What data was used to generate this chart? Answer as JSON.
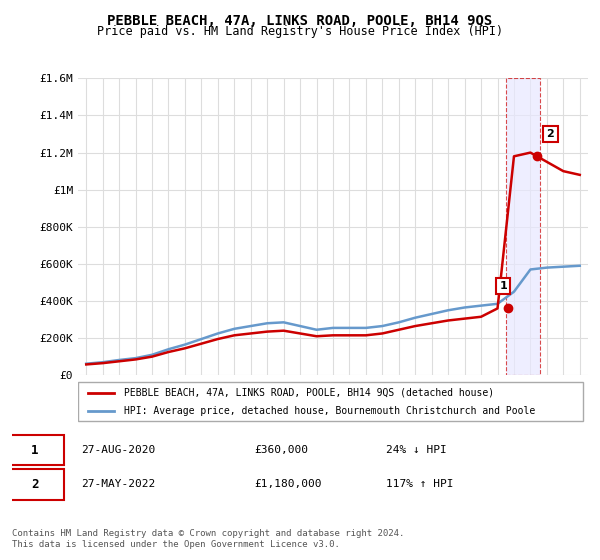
{
  "title": "PEBBLE BEACH, 47A, LINKS ROAD, POOLE, BH14 9QS",
  "subtitle": "Price paid vs. HM Land Registry's House Price Index (HPI)",
  "xlabel": "",
  "ylabel": "",
  "ylim": [
    0,
    1600000
  ],
  "xlim_start": 1995,
  "xlim_end": 2025.5,
  "yticks": [
    0,
    200000,
    400000,
    600000,
    800000,
    1000000,
    1200000,
    1400000,
    1600000
  ],
  "ytick_labels": [
    "£0",
    "£200K",
    "£400K",
    "£600K",
    "£800K",
    "£1M",
    "£1.2M",
    "£1.4M",
    "£1.6M"
  ],
  "xticks": [
    1995,
    1996,
    1997,
    1998,
    1999,
    2000,
    2001,
    2002,
    2003,
    2004,
    2005,
    2006,
    2007,
    2008,
    2009,
    2010,
    2011,
    2012,
    2013,
    2014,
    2015,
    2016,
    2017,
    2018,
    2019,
    2020,
    2021,
    2022,
    2023,
    2024,
    2025
  ],
  "hpi_x": [
    1995,
    1996,
    1997,
    1998,
    1999,
    2000,
    2001,
    2002,
    2003,
    2004,
    2005,
    2006,
    2007,
    2008,
    2009,
    2010,
    2011,
    2012,
    2013,
    2014,
    2015,
    2016,
    2017,
    2018,
    2019,
    2020,
    2021,
    2022,
    2023,
    2024,
    2025
  ],
  "hpi_y": [
    62000,
    70000,
    82000,
    92000,
    110000,
    140000,
    165000,
    195000,
    225000,
    250000,
    265000,
    280000,
    285000,
    265000,
    245000,
    255000,
    255000,
    255000,
    265000,
    285000,
    310000,
    330000,
    350000,
    365000,
    375000,
    385000,
    450000,
    570000,
    580000,
    585000,
    590000
  ],
  "property_x": [
    1995,
    1996,
    1997,
    1998,
    1999,
    2000,
    2001,
    2002,
    2003,
    2004,
    2005,
    2006,
    2007,
    2008,
    2009,
    2010,
    2011,
    2012,
    2013,
    2014,
    2015,
    2016,
    2017,
    2018,
    2019,
    2020,
    2021,
    2022,
    2023,
    2024,
    2025
  ],
  "property_y": [
    58000,
    65000,
    75000,
    85000,
    100000,
    125000,
    145000,
    170000,
    195000,
    215000,
    225000,
    235000,
    240000,
    225000,
    210000,
    215000,
    215000,
    215000,
    225000,
    245000,
    265000,
    280000,
    295000,
    305000,
    315000,
    360000,
    1180000,
    1200000,
    1150000,
    1100000,
    1080000
  ],
  "point1_x": 2020.65,
  "point1_y": 360000,
  "point2_x": 2022.41,
  "point2_y": 1180000,
  "shade_x_start": 2020.5,
  "shade_x_end": 2022.6,
  "line_color_red": "#cc0000",
  "line_color_blue": "#6699cc",
  "shade_color": "#f0f0ff",
  "shade_edge_color": "#cc0000",
  "legend_entries": [
    "PEBBLE BEACH, 47A, LINKS ROAD, POOLE, BH14 9QS (detached house)",
    "HPI: Average price, detached house, Bournemouth Christchurch and Poole"
  ],
  "transaction1_label": "1",
  "transaction1_date": "27-AUG-2020",
  "transaction1_price": "£360,000",
  "transaction1_hpi": "24% ↓ HPI",
  "transaction2_label": "2",
  "transaction2_date": "27-MAY-2022",
  "transaction2_price": "£1,180,000",
  "transaction2_hpi": "117% ↑ HPI",
  "footer": "Contains HM Land Registry data © Crown copyright and database right 2024.\nThis data is licensed under the Open Government Licence v3.0.",
  "background_color": "#ffffff",
  "grid_color": "#dddddd"
}
